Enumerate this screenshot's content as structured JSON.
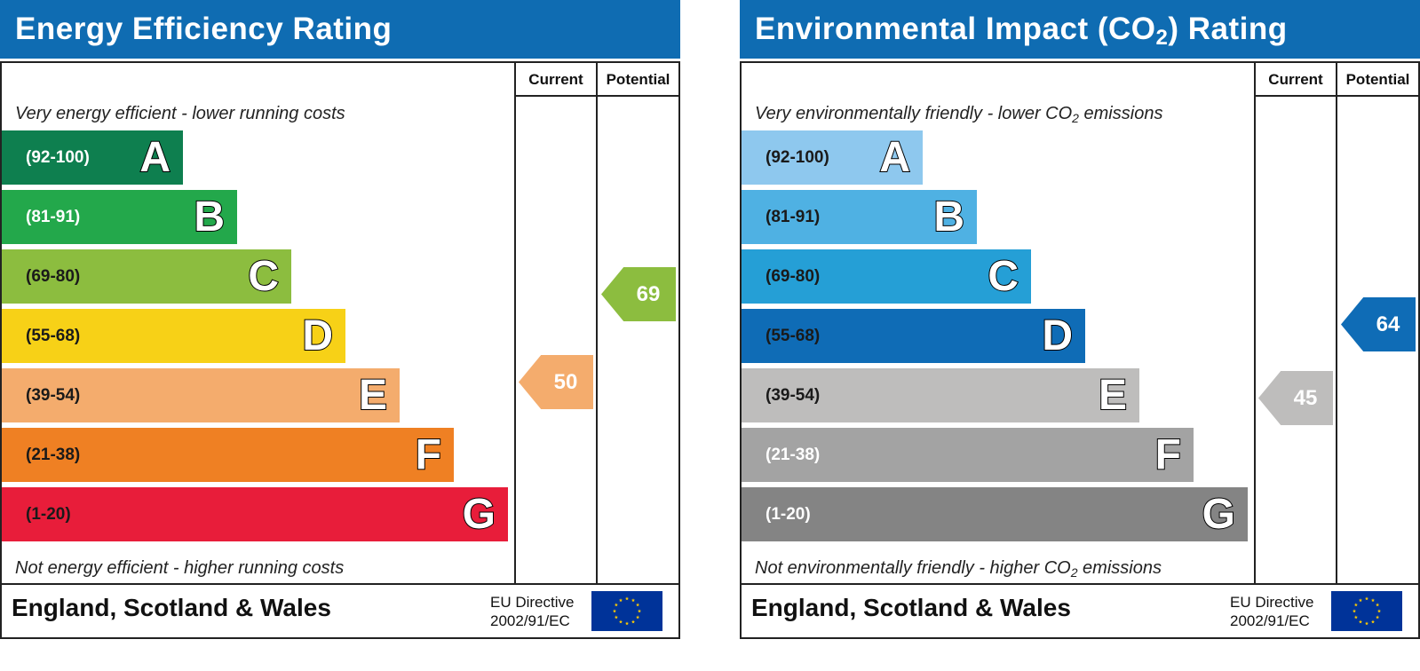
{
  "chart_data": [
    {
      "type": "bar",
      "title": "Energy Efficiency Rating",
      "columns": [
        "Current",
        "Potential"
      ],
      "top_note": "Very energy efficient - lower running costs",
      "bottom_note": "Not energy efficient - higher running costs",
      "bands": [
        {
          "range": "(92-100)",
          "letter": "A",
          "min": 92,
          "max": 100,
          "color": "#0e7f4f"
        },
        {
          "range": "(81-91)",
          "letter": "B",
          "min": 81,
          "max": 91,
          "color": "#23a84b"
        },
        {
          "range": "(69-80)",
          "letter": "C",
          "min": 69,
          "max": 80,
          "color": "#8cbd3f"
        },
        {
          "range": "(55-68)",
          "letter": "D",
          "min": 55,
          "max": 68,
          "color": "#f7d117"
        },
        {
          "range": "(39-54)",
          "letter": "E",
          "min": 39,
          "max": 54,
          "color": "#f4ac6d"
        },
        {
          "range": "(21-38)",
          "letter": "F",
          "min": 21,
          "max": 38,
          "color": "#ef8023"
        },
        {
          "range": "(1-20)",
          "letter": "G",
          "min": 1,
          "max": 20,
          "color": "#e81d3a"
        }
      ],
      "current": {
        "value": 50,
        "band": "E",
        "color": "#f4ac6d"
      },
      "potential": {
        "value": 69,
        "band": "C",
        "color": "#8cbd3f"
      },
      "footer": {
        "country": "England, Scotland & Wales",
        "directive_line1": "EU Directive",
        "directive_line2": "2002/91/EC"
      }
    },
    {
      "type": "bar",
      "title": "Environmental Impact (CO",
      "title_sub": "2",
      "title_suffix": ") Rating",
      "columns": [
        "Current",
        "Potential"
      ],
      "top_note": "Very environmentally friendly - lower CO",
      "top_note_sub": "2",
      "top_note_suffix": " emissions",
      "bottom_note": "Not environmentally friendly - higher CO",
      "bottom_note_sub": "2",
      "bottom_note_suffix": " emissions",
      "bands": [
        {
          "range": "(92-100)",
          "letter": "A",
          "min": 92,
          "max": 100,
          "color": "#8ec8ee"
        },
        {
          "range": "(81-91)",
          "letter": "B",
          "min": 81,
          "max": 91,
          "color": "#4fb1e3"
        },
        {
          "range": "(69-80)",
          "letter": "C",
          "min": 69,
          "max": 80,
          "color": "#259fd6"
        },
        {
          "range": "(55-68)",
          "letter": "D",
          "min": 55,
          "max": 68,
          "color": "#0f6cb6"
        },
        {
          "range": "(39-54)",
          "letter": "E",
          "min": 39,
          "max": 54,
          "color": "#bebdbc"
        },
        {
          "range": "(21-38)",
          "letter": "F",
          "min": 21,
          "max": 38,
          "color": "#a3a3a3"
        },
        {
          "range": "(1-20)",
          "letter": "G",
          "min": 1,
          "max": 20,
          "color": "#848484"
        }
      ],
      "current": {
        "value": 45,
        "band": "E",
        "color": "#bebdbc"
      },
      "potential": {
        "value": 64,
        "band": "D",
        "color": "#0f6cb6"
      },
      "footer": {
        "country": "England, Scotland & Wales",
        "directive_line1": "EU Directive",
        "directive_line2": "2002/91/EC"
      }
    }
  ]
}
